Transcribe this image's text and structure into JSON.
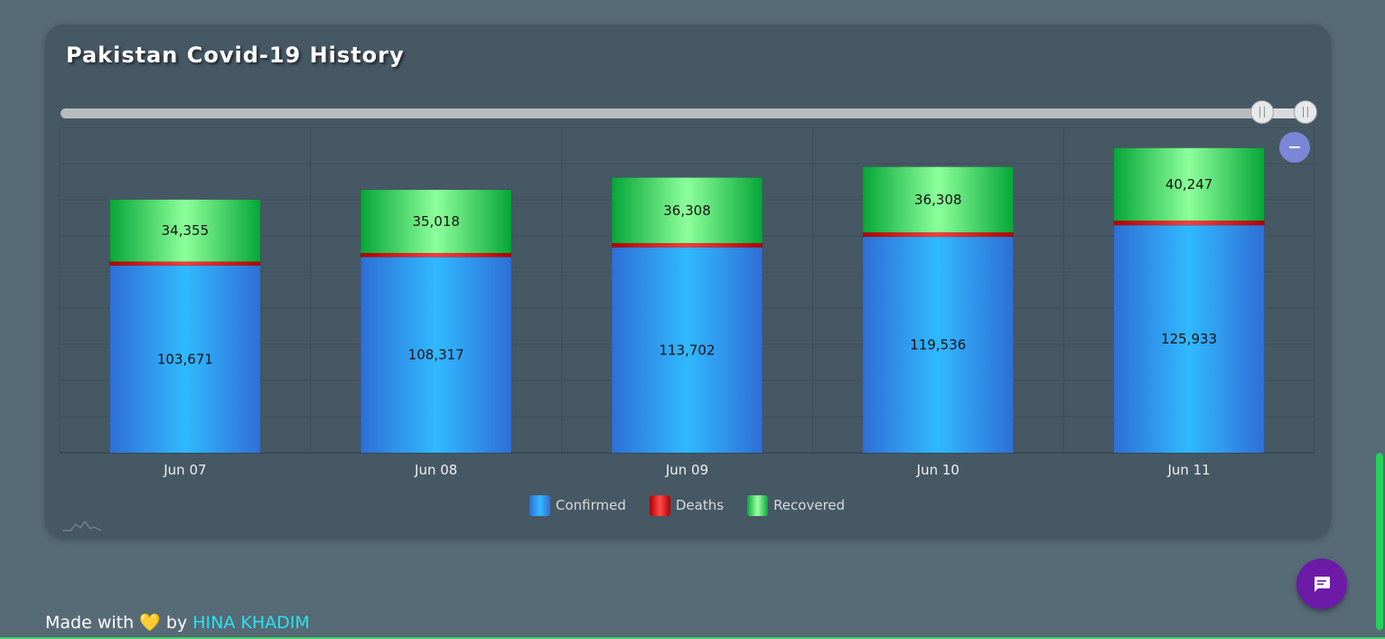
{
  "title": "Pakistan Covid-19 History",
  "legend": {
    "confirmed": "Confirmed",
    "deaths": "Deaths",
    "recovered": "Recovered"
  },
  "footer": {
    "prefix": "Made with",
    "heart": "💛",
    "by": "by",
    "author": "HINA KHADIM"
  },
  "colors": {
    "confirmed": "#35b8ff",
    "deaths": "#ff1a1a",
    "recovered": "#7dff8a",
    "chat": "#6d1aa8",
    "link": "#27e3f2"
  },
  "icons": {
    "zoom_out": "minus-icon",
    "chat": "chat-bubble-icon",
    "watermark": "chart-watermark-icon"
  },
  "chart_data": {
    "type": "bar",
    "stacked": true,
    "title": "Pakistan Covid-19 History",
    "categories": [
      "Jun 07",
      "Jun 08",
      "Jun 09",
      "Jun 10",
      "Jun 11"
    ],
    "series": [
      {
        "name": "Confirmed",
        "values": [
          103671,
          108317,
          113702,
          119536,
          125933
        ]
      },
      {
        "name": "Deaths",
        "values": [
          2067,
          2172,
          2255,
          2356,
          2463
        ]
      },
      {
        "name": "Recovered",
        "values": [
          34355,
          35018,
          36308,
          36308,
          40247
        ]
      }
    ],
    "ylim": [
      0,
      180000
    ],
    "grid": true,
    "legend_position": "bottom-center"
  }
}
